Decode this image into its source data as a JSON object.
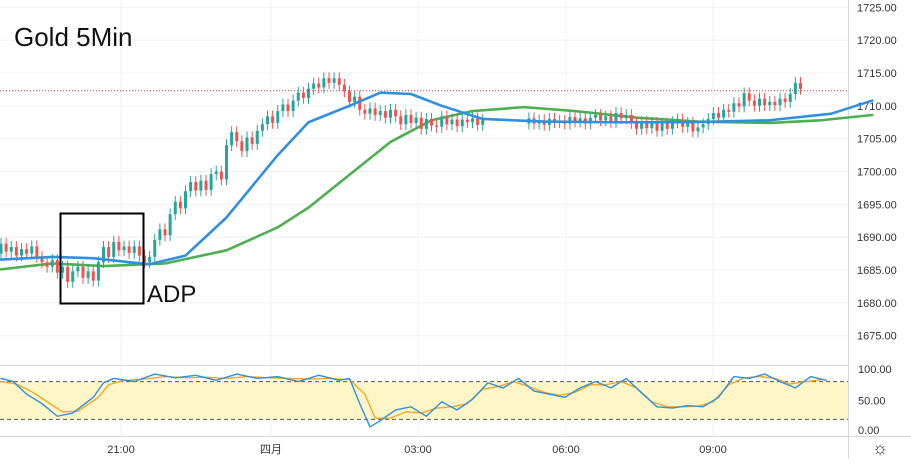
{
  "chart_data": {
    "type": "candlestick",
    "title": "Gold 5Min",
    "annotation": "ADP",
    "price_axis": {
      "ticks": [
        "1675.00",
        "1680.00",
        "1685.00",
        "1690.00",
        "1695.00",
        "1700.00",
        "1705.00",
        "1710.00",
        "1715.00",
        "1720.00",
        "1725.00"
      ],
      "ylim": [
        1671,
        1725.5
      ]
    },
    "current_price_line": 1712.3,
    "time_axis": {
      "labels": [
        "21:00",
        "四月",
        "03:00",
        "06:00",
        "09:00"
      ]
    },
    "grid": true,
    "colors": {
      "up": "#26a69a",
      "down": "#ef5350",
      "ma_fast": "#2f8fe0",
      "ma_slow": "#4caf50",
      "current_price": "#e53935",
      "stoch_k": "#2f8fe0",
      "stoch_d": "#f5a623",
      "stoch_band": "#fff6c8"
    },
    "ma_fast": [
      [
        0,
        1686.6
      ],
      [
        0.5,
        1687
      ],
      [
        0.9,
        1686.8
      ],
      [
        1.25,
        1686.2
      ],
      [
        1.45,
        1685.9
      ],
      [
        1.8,
        1687.2
      ],
      [
        2.2,
        1693
      ],
      [
        2.7,
        1702.5
      ],
      [
        3,
        1707.5
      ],
      [
        3.4,
        1710
      ],
      [
        3.7,
        1712
      ],
      [
        4,
        1711.8
      ],
      [
        4.3,
        1710
      ],
      [
        4.7,
        1708
      ],
      [
        5.3,
        1707.6
      ],
      [
        6,
        1707.5
      ],
      [
        6.7,
        1707.5
      ],
      [
        7.5,
        1707.8
      ],
      [
        8.1,
        1708.8
      ],
      [
        8.5,
        1710.8
      ]
    ],
    "ma_slow": [
      [
        0,
        1685.1
      ],
      [
        0.5,
        1686
      ],
      [
        1,
        1685.6
      ],
      [
        1.6,
        1686
      ],
      [
        2.2,
        1688
      ],
      [
        2.7,
        1691.5
      ],
      [
        3,
        1694.5
      ],
      [
        3.4,
        1699.5
      ],
      [
        3.8,
        1704.5
      ],
      [
        4.2,
        1707.8
      ],
      [
        4.6,
        1709.2
      ],
      [
        5.1,
        1709.8
      ],
      [
        5.6,
        1709.2
      ],
      [
        6.2,
        1708.2
      ],
      [
        6.8,
        1707.6
      ],
      [
        7.5,
        1707.4
      ],
      [
        8,
        1707.8
      ],
      [
        8.5,
        1708.6
      ]
    ],
    "candles": [
      [
        0,
        1687.5,
        1689
      ],
      [
        0.05,
        1689,
        1687.8
      ],
      [
        0.1,
        1687.8,
        1688.5
      ],
      [
        0.15,
        1688.5,
        1687.2
      ],
      [
        0.2,
        1687.2,
        1688.2
      ],
      [
        0.25,
        1688.2,
        1687.5
      ],
      [
        0.3,
        1687.5,
        1688.6
      ],
      [
        0.35,
        1688.6,
        1687
      ],
      [
        0.4,
        1687,
        1686.2
      ],
      [
        0.45,
        1686.2,
        1685.5
      ],
      [
        0.5,
        1685.5,
        1686.5
      ],
      [
        0.55,
        1686.5,
        1684.6
      ],
      [
        0.6,
        1684.6,
        1685.5
      ],
      [
        0.65,
        1685.5,
        1683.2
      ],
      [
        0.7,
        1683.2,
        1684.8
      ],
      [
        0.75,
        1684.8,
        1685.5
      ],
      [
        0.8,
        1685.5,
        1683.8
      ],
      [
        0.85,
        1683.8,
        1684.8
      ],
      [
        0.9,
        1684.8,
        1683.4
      ],
      [
        0.95,
        1683.4,
        1686.2
      ],
      [
        1,
        1686.2,
        1688.5
      ],
      [
        1.05,
        1688.5,
        1687
      ],
      [
        1.1,
        1687,
        1689.3
      ],
      [
        1.15,
        1689.3,
        1688
      ],
      [
        1.2,
        1688,
        1688.6
      ],
      [
        1.25,
        1688.6,
        1687.6
      ],
      [
        1.3,
        1687.6,
        1688.6
      ],
      [
        1.35,
        1688.6,
        1687.2
      ],
      [
        1.4,
        1687.2,
        1686.2
      ],
      [
        1.45,
        1686.2,
        1687
      ],
      [
        1.5,
        1687,
        1689.6
      ],
      [
        1.55,
        1689.6,
        1691.2
      ],
      [
        1.6,
        1691.2,
        1690.3
      ],
      [
        1.65,
        1690.3,
        1693.5
      ],
      [
        1.7,
        1693.5,
        1695.4
      ],
      [
        1.75,
        1695.4,
        1694.4
      ],
      [
        1.8,
        1694.4,
        1697
      ],
      [
        1.85,
        1697,
        1698.4
      ],
      [
        1.9,
        1698.4,
        1697.1
      ],
      [
        1.95,
        1697.1,
        1698.6
      ],
      [
        2,
        1698.6,
        1697.2
      ],
      [
        2.05,
        1697.2,
        1699.6
      ],
      [
        2.1,
        1699.6,
        1700
      ],
      [
        2.15,
        1700,
        1698.8
      ],
      [
        2.2,
        1698.8,
        1704
      ],
      [
        2.25,
        1704,
        1706
      ],
      [
        2.3,
        1706,
        1704.6
      ],
      [
        2.35,
        1704.6,
        1703.1
      ],
      [
        2.4,
        1703.1,
        1705.2
      ],
      [
        2.45,
        1705.2,
        1704.2
      ],
      [
        2.5,
        1704.2,
        1706.2
      ],
      [
        2.55,
        1706.2,
        1707.2
      ],
      [
        2.6,
        1707.2,
        1708.4
      ],
      [
        2.65,
        1708.4,
        1707.4
      ],
      [
        2.7,
        1707.4,
        1709.2
      ],
      [
        2.75,
        1709.2,
        1710.2
      ],
      [
        2.8,
        1710.2,
        1709.2
      ],
      [
        2.85,
        1709.2,
        1710.8
      ],
      [
        2.9,
        1710.8,
        1712
      ],
      [
        2.95,
        1712,
        1711.2
      ],
      [
        3,
        1711.2,
        1712.6
      ],
      [
        3.05,
        1712.6,
        1713.4
      ],
      [
        3.1,
        1713.4,
        1712.8
      ],
      [
        3.15,
        1712.8,
        1714.2
      ],
      [
        3.2,
        1714.2,
        1713.5
      ],
      [
        3.25,
        1713.5,
        1714.2
      ],
      [
        3.3,
        1714.2,
        1713.2
      ],
      [
        3.35,
        1713.2,
        1712.2
      ],
      [
        3.4,
        1712.2,
        1710.6
      ],
      [
        3.45,
        1710.6,
        1711.4
      ],
      [
        3.5,
        1711.4,
        1709.4
      ],
      [
        3.55,
        1709.4,
        1708.8
      ],
      [
        3.6,
        1708.8,
        1709.6
      ],
      [
        3.65,
        1709.6,
        1708.6
      ],
      [
        3.7,
        1708.6,
        1709.2
      ],
      [
        3.75,
        1709.2,
        1708.2
      ],
      [
        3.8,
        1708.2,
        1709.4
      ],
      [
        3.85,
        1709.4,
        1708.4
      ],
      [
        3.9,
        1708.4,
        1707.2
      ],
      [
        3.95,
        1707.2,
        1708.6
      ],
      [
        4,
        1708.6,
        1707.4
      ],
      [
        4.05,
        1707.4,
        1708.2
      ],
      [
        4.1,
        1708.2,
        1706.5
      ],
      [
        4.15,
        1706.5,
        1708
      ],
      [
        4.2,
        1708,
        1707
      ],
      [
        4.25,
        1707,
        1706.8
      ],
      [
        4.3,
        1706.8,
        1708.4
      ],
      [
        4.35,
        1708.4,
        1707.2
      ],
      [
        4.4,
        1707.2,
        1707.9
      ],
      [
        4.45,
        1707.9,
        1706.9
      ],
      [
        4.5,
        1706.9,
        1707.9
      ],
      [
        4.55,
        1707.9,
        1707.5
      ],
      [
        4.6,
        1707.5,
        1708.1
      ],
      [
        4.65,
        1708.1,
        1707.1
      ],
      [
        4.7,
        1707.1,
        1707.9
      ],
      [
        5.15,
        1707.3,
        1708.1
      ],
      [
        5.2,
        1708.1,
        1707.3
      ],
      [
        5.25,
        1707.3,
        1707.8
      ],
      [
        5.3,
        1707.8,
        1707.1
      ],
      [
        5.35,
        1707.1,
        1708
      ],
      [
        5.4,
        1708,
        1707.5
      ],
      [
        5.45,
        1707.5,
        1707.7
      ],
      [
        5.5,
        1707.7,
        1707.3
      ],
      [
        5.55,
        1707.3,
        1708.3
      ],
      [
        5.6,
        1708.3,
        1707.6
      ],
      [
        5.65,
        1707.6,
        1708.1
      ],
      [
        5.7,
        1708.1,
        1707.3
      ],
      [
        5.75,
        1707.3,
        1708.2
      ],
      [
        5.8,
        1708.2,
        1708.6
      ],
      [
        5.85,
        1708.6,
        1707.8
      ],
      [
        5.9,
        1707.8,
        1708.4
      ],
      [
        5.95,
        1708.4,
        1707.5
      ],
      [
        6,
        1707.5,
        1708.9
      ],
      [
        6.05,
        1708.9,
        1708.1
      ],
      [
        6.1,
        1708.1,
        1708.6
      ],
      [
        6.15,
        1708.6,
        1707.4
      ],
      [
        6.2,
        1707.4,
        1706.5
      ],
      [
        6.25,
        1706.5,
        1707.5
      ],
      [
        6.3,
        1707.5,
        1706.6
      ],
      [
        6.35,
        1706.6,
        1707.4
      ],
      [
        6.4,
        1707.4,
        1706.2
      ],
      [
        6.45,
        1706.2,
        1707.3
      ],
      [
        6.5,
        1707.3,
        1706.5
      ],
      [
        6.55,
        1706.5,
        1707.5
      ],
      [
        6.6,
        1707.5,
        1707.9
      ],
      [
        6.65,
        1707.9,
        1706.8
      ],
      [
        6.7,
        1706.8,
        1707.4
      ],
      [
        6.75,
        1707.4,
        1706.1
      ],
      [
        6.8,
        1706.1,
        1706.7
      ],
      [
        6.85,
        1706.7,
        1707.2
      ],
      [
        6.9,
        1707.2,
        1708
      ],
      [
        6.95,
        1708,
        1708.9
      ],
      [
        7,
        1708.9,
        1708.2
      ],
      [
        7.05,
        1708.2,
        1709.4
      ],
      [
        7.1,
        1709.4,
        1709.1
      ],
      [
        7.15,
        1709.1,
        1710.4
      ],
      [
        7.2,
        1710.4,
        1709.9
      ],
      [
        7.25,
        1709.9,
        1711.9
      ],
      [
        7.3,
        1711.9,
        1710.8
      ],
      [
        7.35,
        1710.8,
        1710
      ],
      [
        7.4,
        1710,
        1711.1
      ],
      [
        7.45,
        1711.1,
        1710.1
      ],
      [
        7.5,
        1710.1,
        1710.6
      ],
      [
        7.55,
        1710.6,
        1710.1
      ],
      [
        7.6,
        1710.1,
        1711.1
      ],
      [
        7.65,
        1711.1,
        1710.6
      ],
      [
        7.7,
        1710.6,
        1711.8
      ],
      [
        7.75,
        1711.8,
        1713.5
      ],
      [
        7.8,
        1713.5,
        1712.6
      ]
    ],
    "stochastic": {
      "ticks": [
        "0.00",
        "50.00",
        "100.00"
      ],
      "overbought": 80,
      "oversold": 20,
      "k": [
        [
          0,
          85
        ],
        [
          0.12,
          80
        ],
        [
          0.25,
          60
        ],
        [
          0.4,
          45
        ],
        [
          0.55,
          25
        ],
        [
          0.7,
          30
        ],
        [
          0.9,
          55
        ],
        [
          1,
          78
        ],
        [
          1.1,
          85
        ],
        [
          1.3,
          80
        ],
        [
          1.5,
          92
        ],
        [
          1.7,
          86
        ],
        [
          1.9,
          90
        ],
        [
          2.1,
          82
        ],
        [
          2.3,
          92
        ],
        [
          2.5,
          85
        ],
        [
          2.7,
          88
        ],
        [
          2.9,
          80
        ],
        [
          3.1,
          90
        ],
        [
          3.3,
          82
        ],
        [
          3.4,
          85
        ],
        [
          3.5,
          45
        ],
        [
          3.6,
          8
        ],
        [
          3.7,
          18
        ],
        [
          3.85,
          35
        ],
        [
          4,
          40
        ],
        [
          4.15,
          25
        ],
        [
          4.3,
          48
        ],
        [
          4.45,
          35
        ],
        [
          4.6,
          52
        ],
        [
          4.75,
          78
        ],
        [
          4.9,
          70
        ],
        [
          5.05,
          85
        ],
        [
          5.2,
          65
        ],
        [
          5.35,
          60
        ],
        [
          5.5,
          55
        ],
        [
          5.65,
          70
        ],
        [
          5.8,
          80
        ],
        [
          5.95,
          70
        ],
        [
          6.1,
          85
        ],
        [
          6.25,
          62
        ],
        [
          6.4,
          40
        ],
        [
          6.55,
          38
        ],
        [
          6.7,
          42
        ],
        [
          6.85,
          40
        ],
        [
          7,
          55
        ],
        [
          7.15,
          88
        ],
        [
          7.3,
          85
        ],
        [
          7.45,
          92
        ],
        [
          7.6,
          80
        ],
        [
          7.75,
          70
        ],
        [
          7.9,
          88
        ],
        [
          8.05,
          82
        ]
      ],
      "d": [
        [
          0,
          80
        ],
        [
          0.15,
          76
        ],
        [
          0.3,
          64
        ],
        [
          0.45,
          48
        ],
        [
          0.6,
          32
        ],
        [
          0.75,
          33
        ],
        [
          0.95,
          55
        ],
        [
          1.05,
          75
        ],
        [
          1.2,
          82
        ],
        [
          1.4,
          84
        ],
        [
          1.6,
          88
        ],
        [
          1.8,
          86
        ],
        [
          2,
          87
        ],
        [
          2.2,
          85
        ],
        [
          2.4,
          88
        ],
        [
          2.6,
          86
        ],
        [
          2.8,
          85
        ],
        [
          3,
          84
        ],
        [
          3.2,
          85
        ],
        [
          3.4,
          83
        ],
        [
          3.55,
          60
        ],
        [
          3.65,
          22
        ],
        [
          3.8,
          22
        ],
        [
          3.95,
          32
        ],
        [
          4.1,
          30
        ],
        [
          4.25,
          38
        ],
        [
          4.4,
          40
        ],
        [
          4.55,
          45
        ],
        [
          4.7,
          68
        ],
        [
          4.85,
          72
        ],
        [
          5,
          80
        ],
        [
          5.15,
          72
        ],
        [
          5.3,
          63
        ],
        [
          5.45,
          58
        ],
        [
          5.6,
          63
        ],
        [
          5.75,
          75
        ],
        [
          5.9,
          75
        ],
        [
          6.05,
          80
        ],
        [
          6.2,
          70
        ],
        [
          6.35,
          48
        ],
        [
          6.5,
          40
        ],
        [
          6.65,
          40
        ],
        [
          6.8,
          41
        ],
        [
          6.95,
          48
        ],
        [
          7.1,
          75
        ],
        [
          7.25,
          86
        ],
        [
          7.4,
          88
        ],
        [
          7.55,
          85
        ],
        [
          7.7,
          76
        ],
        [
          7.85,
          80
        ],
        [
          8,
          83
        ]
      ]
    }
  }
}
